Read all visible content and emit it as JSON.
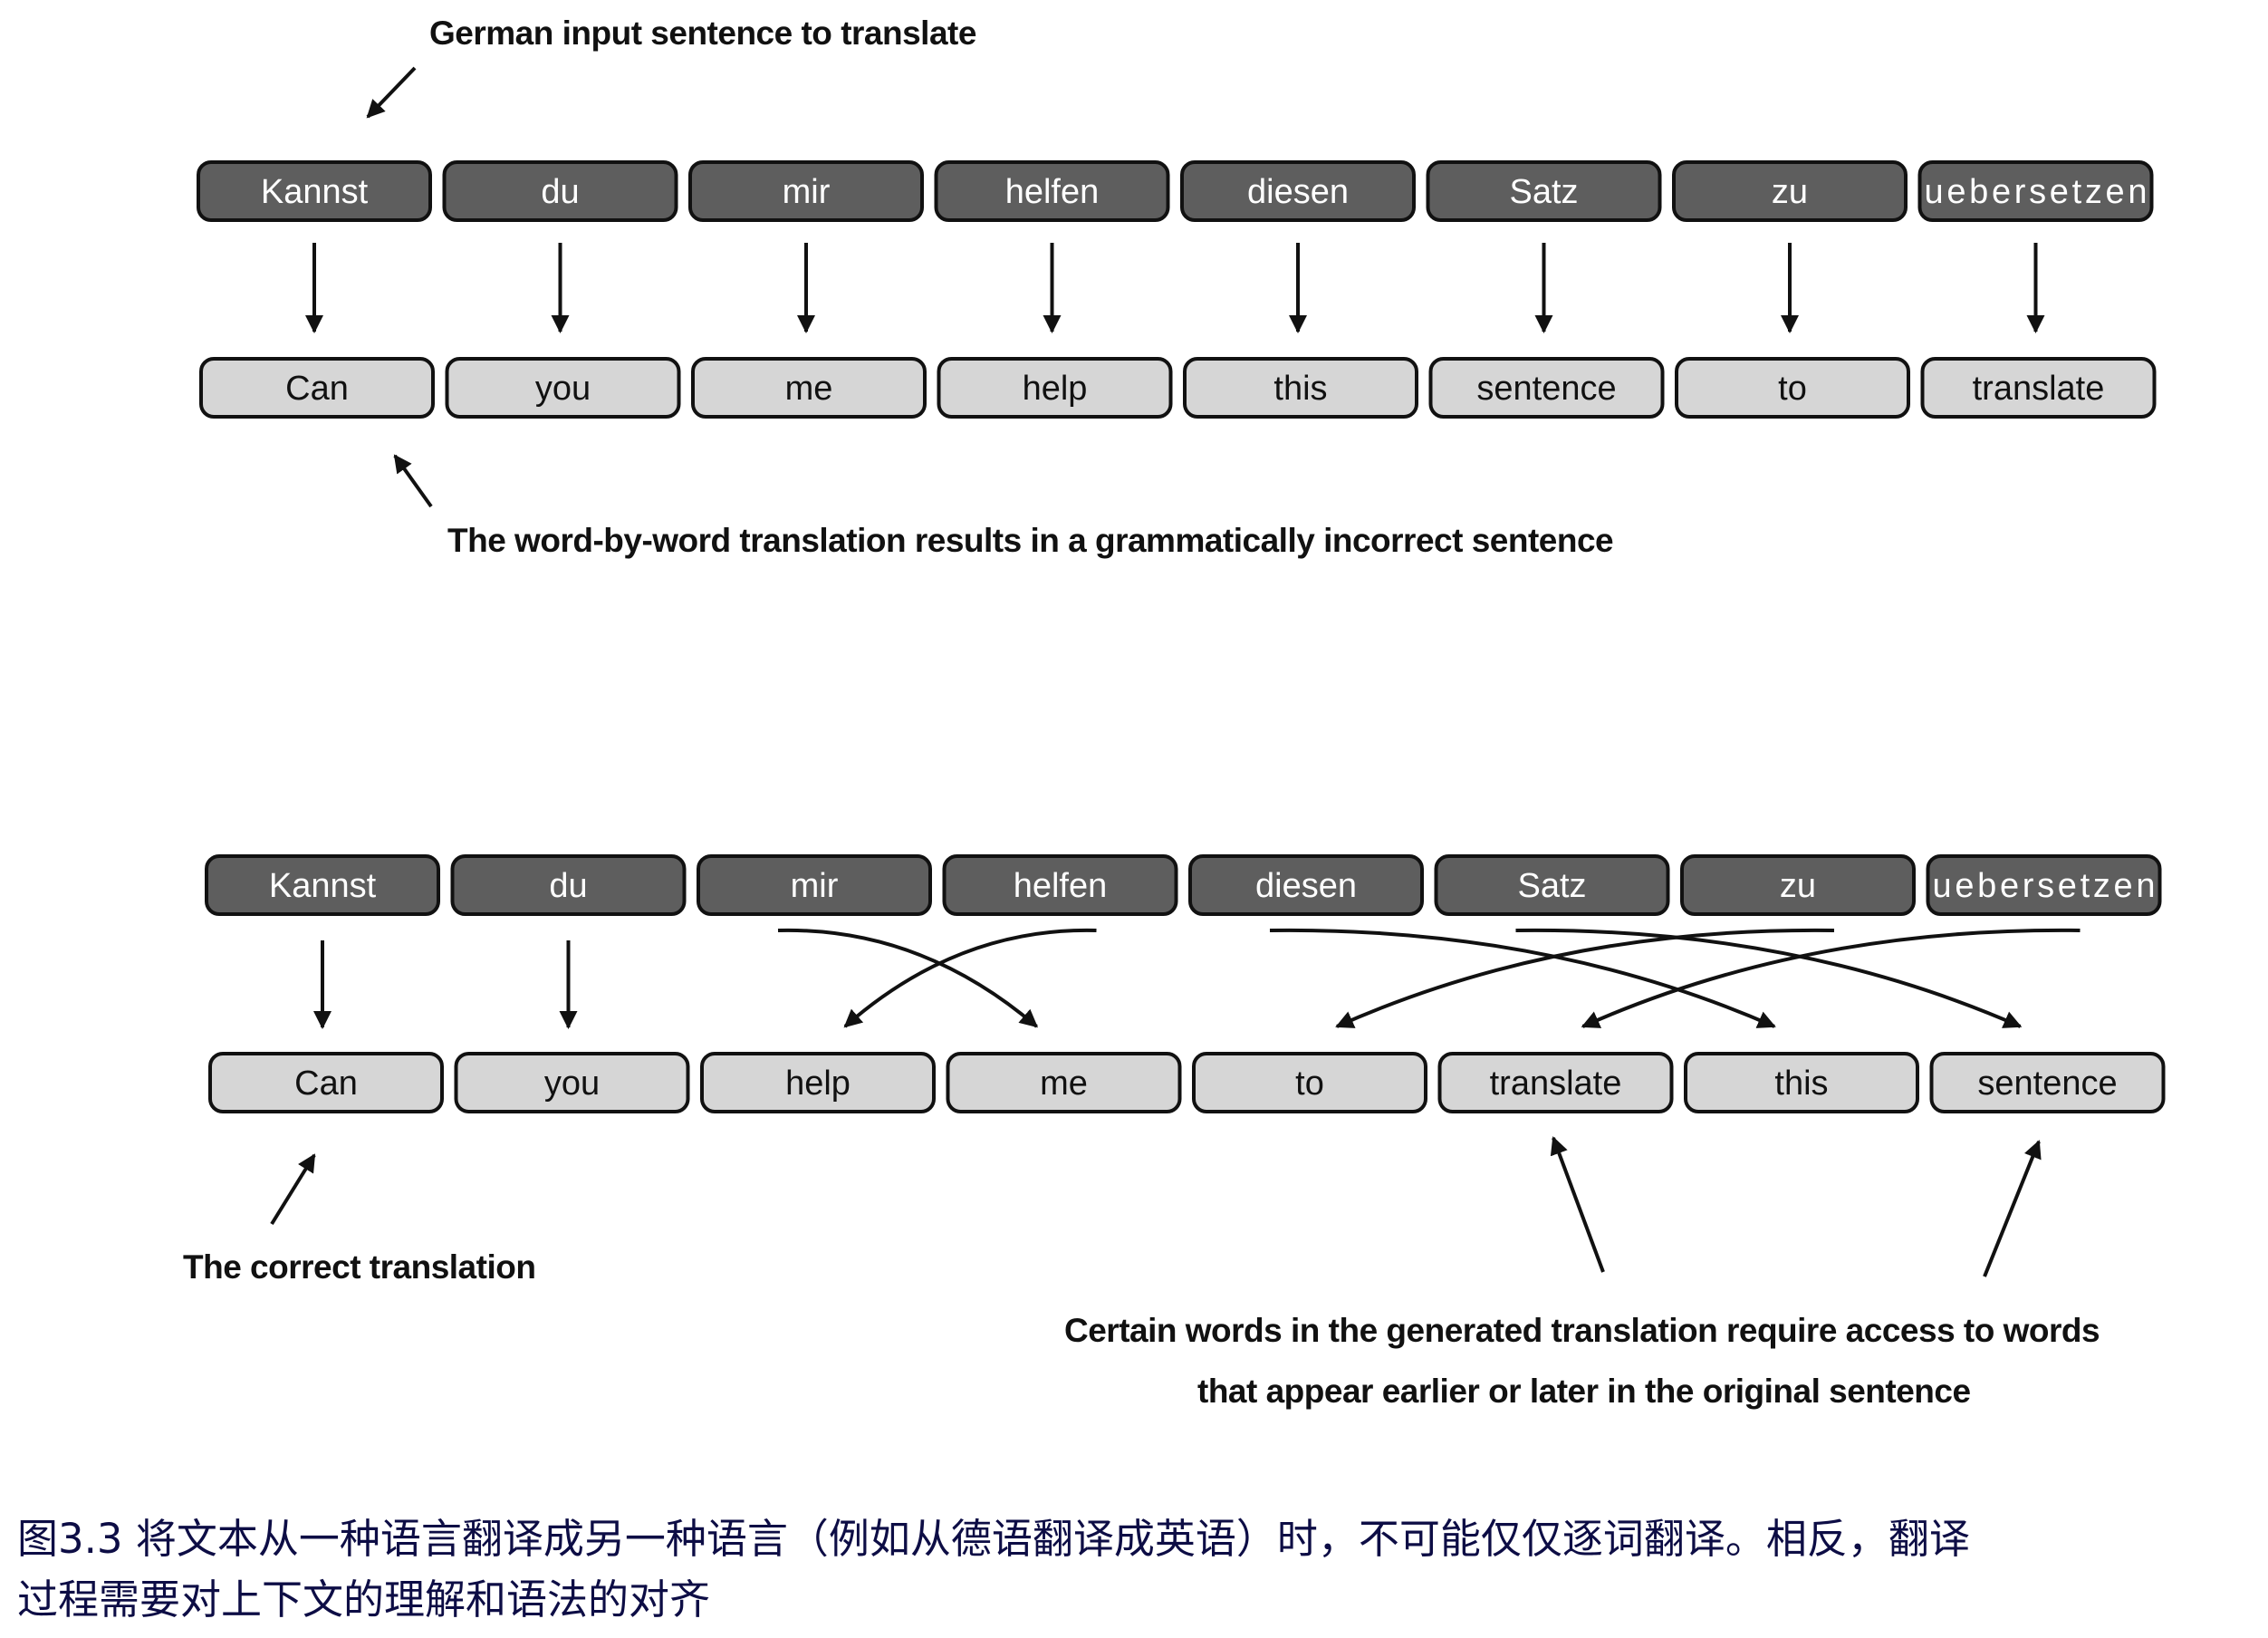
{
  "top_diagram": {
    "annotation_input": "German input sentence to translate",
    "annotation_result": "The word-by-word translation results in a grammatically incorrect sentence",
    "german_words": [
      "Kannst",
      "du",
      "mir",
      "helfen",
      "diesen",
      "Satz",
      "zu",
      "uebersetzen"
    ],
    "english_words": [
      "Can",
      "you",
      "me",
      "help",
      "this",
      "sentence",
      "to",
      "translate"
    ]
  },
  "bottom_diagram": {
    "annotation_correct": "The correct translation",
    "annotation_access_line1": "Certain words in the generated translation require access to words",
    "annotation_access_line2": "that appear earlier or later in the original sentence",
    "german_words": [
      "Kannst",
      "du",
      "mir",
      "helfen",
      "diesen",
      "Satz",
      "zu",
      "uebersetzen"
    ],
    "english_words": [
      "Can",
      "you",
      "help",
      "me",
      "to",
      "translate",
      "this",
      "sentence"
    ],
    "alignment": [
      [
        0,
        0
      ],
      [
        1,
        1
      ],
      [
        2,
        3
      ],
      [
        3,
        2
      ],
      [
        4,
        6
      ],
      [
        5,
        7
      ],
      [
        6,
        4
      ],
      [
        7,
        5
      ]
    ]
  },
  "caption": {
    "line1": "图3.3 将文本从一种语言翻译成另一种语言（例如从德语翻译成英语）时，不可能仅仅逐词翻译。相反，翻译",
    "line2": "过程需要对上下文的理解和语法的对齐"
  },
  "colors": {
    "source_box": "#5e5e5e",
    "target_box": "#d6d6d6",
    "caption": "#0d0d45"
  }
}
